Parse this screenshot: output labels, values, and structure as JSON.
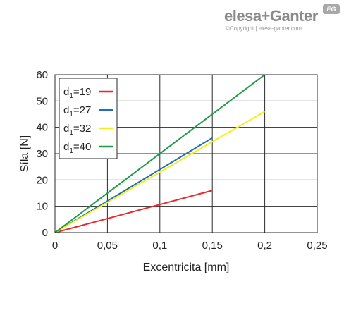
{
  "logo": {
    "brand": "elesa+Ganter",
    "badge": "EG",
    "copyright": "©Copyright | elesa-ganter.com"
  },
  "chart_data": {
    "type": "line",
    "xlabel": "Excentricita [mm]",
    "ylabel": "Síla [N]",
    "xlim": [
      0,
      0.25
    ],
    "ylim": [
      0,
      60
    ],
    "xticks": [
      0,
      0.05,
      0.1,
      0.15,
      0.2,
      0.25
    ],
    "xtick_labels": [
      "0",
      "0,05",
      "0,1",
      "0,15",
      "0,2",
      "0,25"
    ],
    "yticks": [
      0,
      10,
      20,
      30,
      40,
      50,
      60
    ],
    "ytick_labels": [
      "0",
      "10",
      "20",
      "30",
      "40",
      "50",
      "60"
    ],
    "grid": true,
    "legend_position": "top-left",
    "series": [
      {
        "name": "d1=19",
        "base": "d",
        "sub": "1",
        "rest": "=19",
        "color": "#e8262b",
        "x": [
          0,
          0.15
        ],
        "y": [
          0,
          16
        ]
      },
      {
        "name": "d1=27",
        "base": "d",
        "sub": "1",
        "rest": "=27",
        "color": "#1c6fb8",
        "x": [
          0,
          0.15
        ],
        "y": [
          0,
          36
        ]
      },
      {
        "name": "d1=32",
        "base": "d",
        "sub": "1",
        "rest": "=32",
        "color": "#f4ee1a",
        "x": [
          0,
          0.2
        ],
        "y": [
          0,
          46
        ]
      },
      {
        "name": "d1=40",
        "base": "d",
        "sub": "1",
        "rest": "=40",
        "color": "#1f9a48",
        "x": [
          0,
          0.2
        ],
        "y": [
          0,
          60
        ]
      }
    ]
  }
}
